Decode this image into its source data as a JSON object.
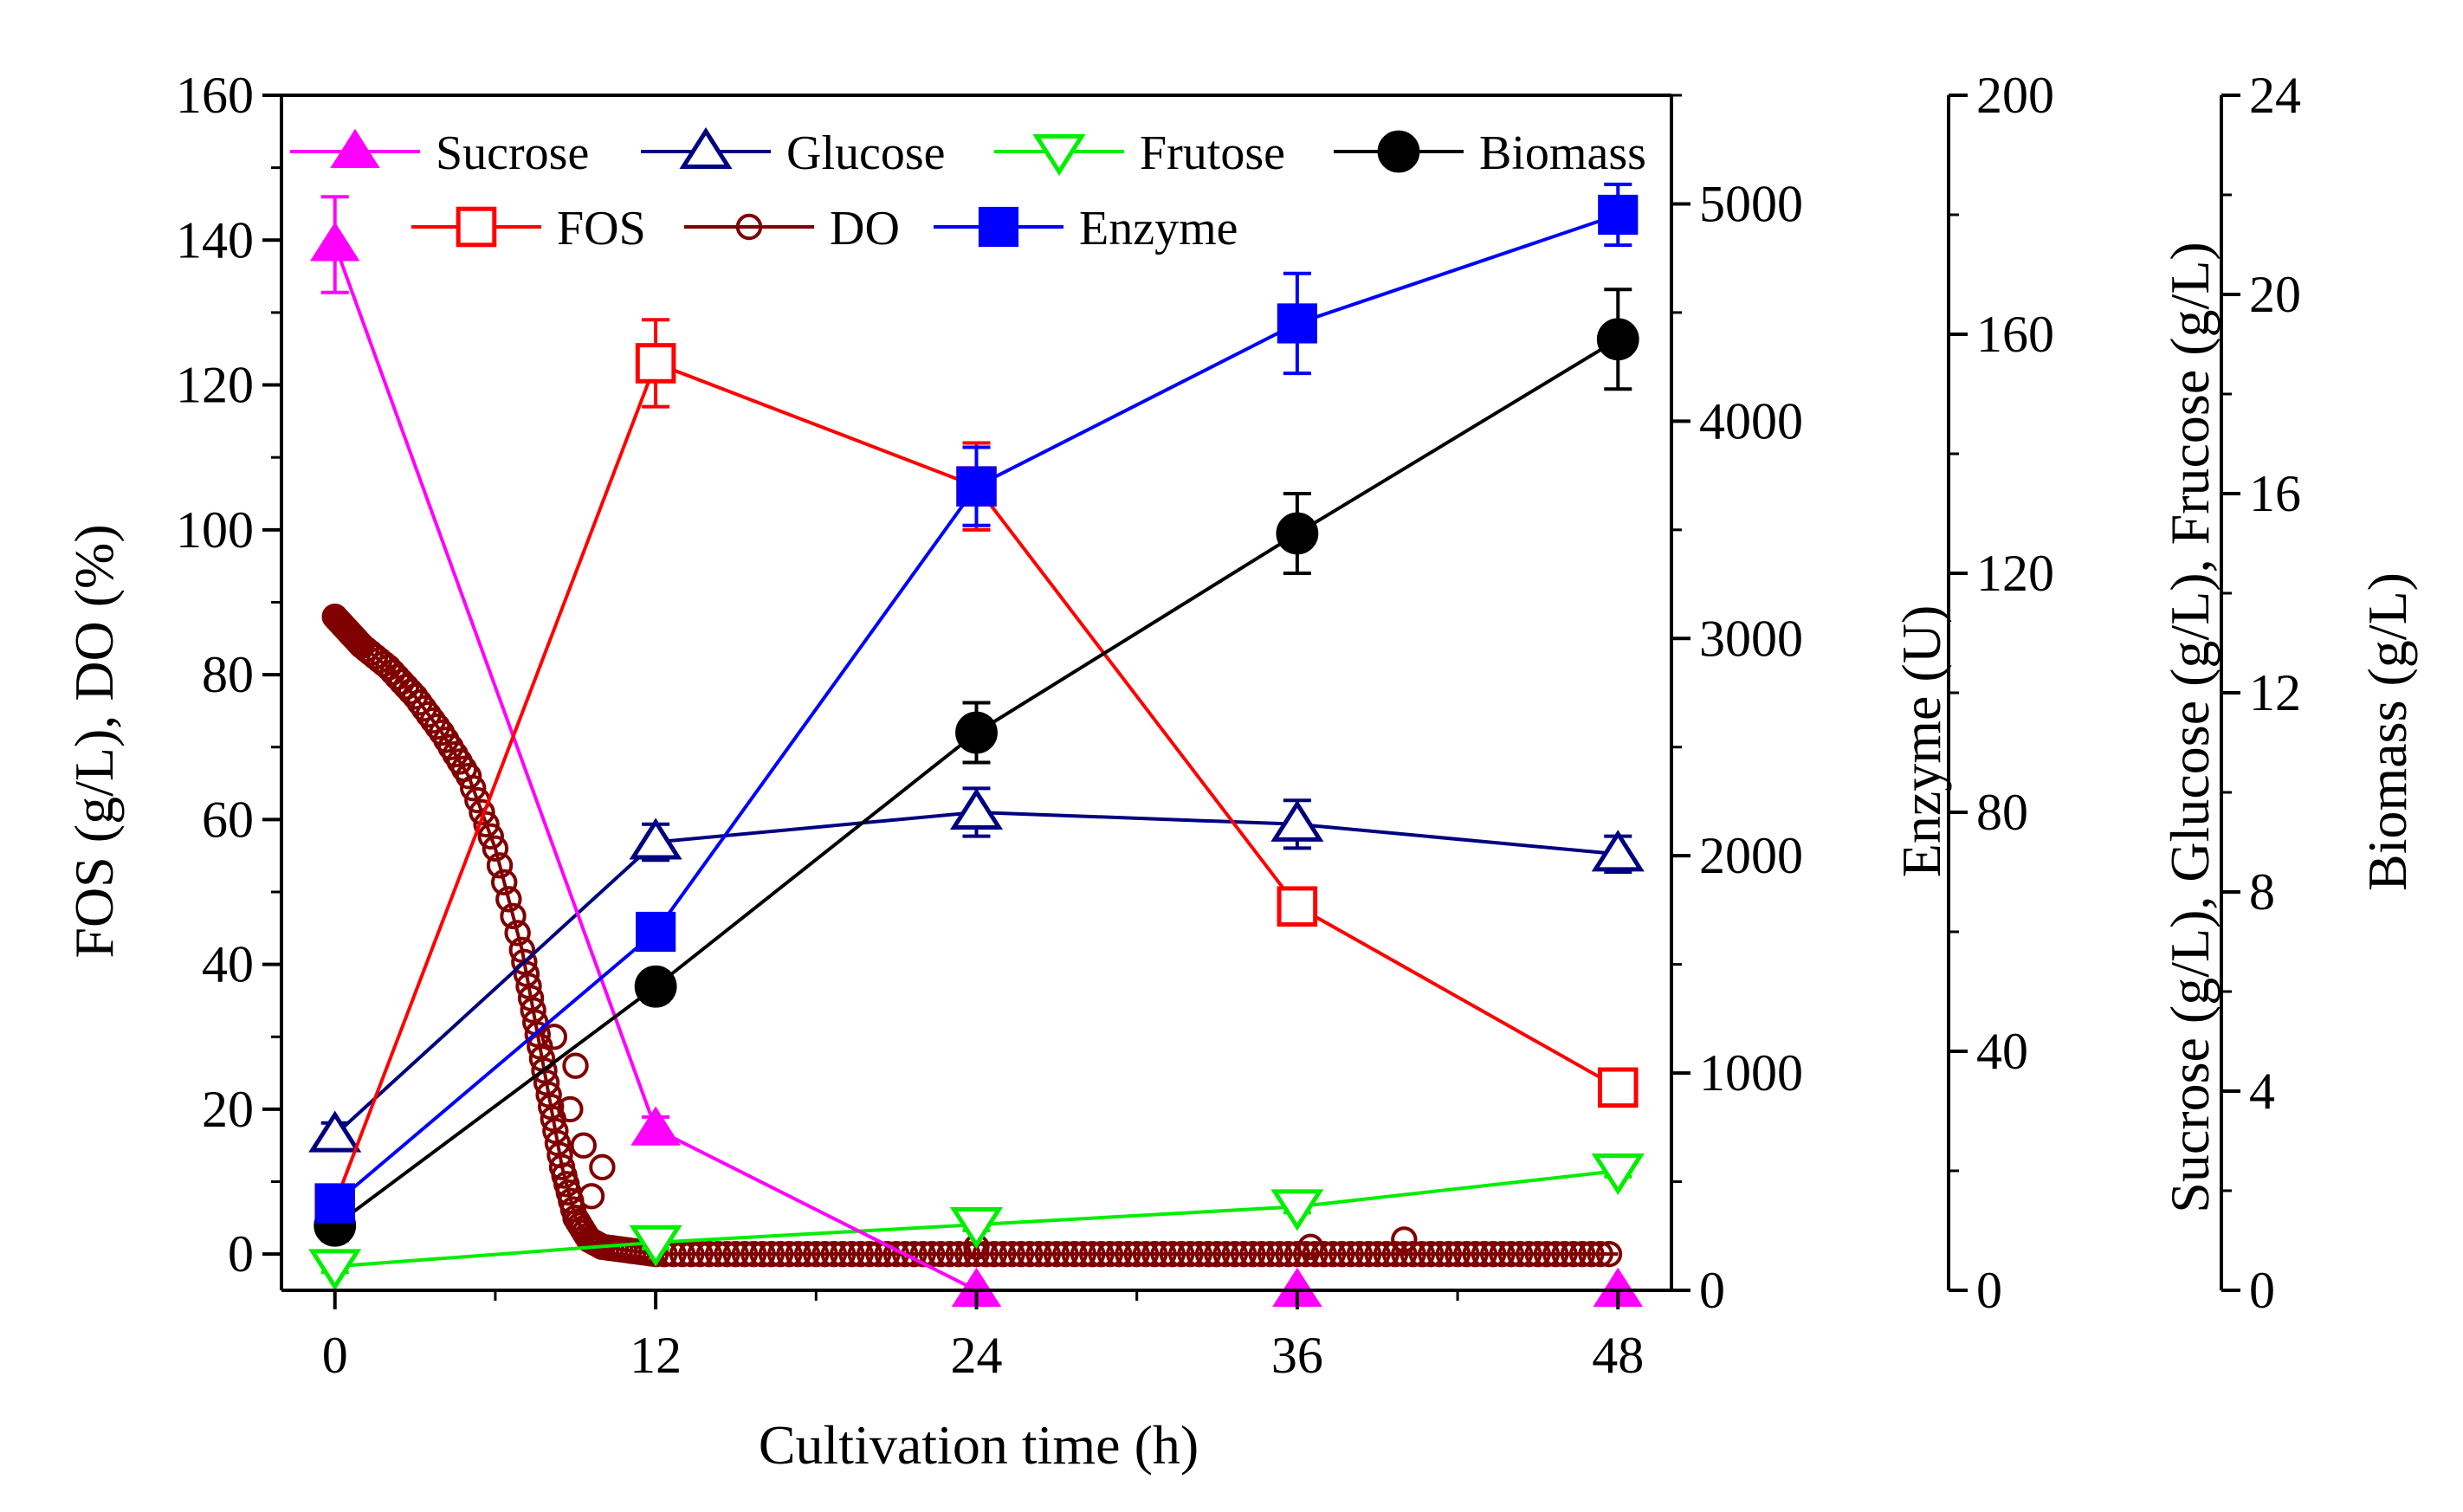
{
  "chart_data": {
    "type": "line",
    "xlabel": "Cultivation time (h)",
    "x": [
      0,
      12,
      24,
      36,
      48
    ],
    "xlim": [
      -2,
      50
    ],
    "xticks": [
      0,
      12,
      24,
      36,
      48
    ],
    "xtick_labels": [
      "0",
      "12",
      "24",
      "36",
      "48"
    ],
    "axes": [
      {
        "id": "left",
        "label": "FOS (g/L), DO (%)",
        "range": [
          -5,
          160
        ],
        "ticks": [
          0,
          20,
          40,
          60,
          80,
          100,
          120,
          140,
          160
        ],
        "tick_labels": [
          "0",
          "20",
          "40",
          "60",
          "80",
          "100",
          "120",
          "140",
          "160"
        ]
      },
      {
        "id": "enzyme",
        "label": "Enzyme (U)",
        "range": [
          0,
          5500
        ],
        "ticks": [
          0,
          1000,
          2000,
          3000,
          4000,
          5000
        ],
        "tick_labels": [
          "0",
          "1000",
          "2000",
          "3000",
          "4000",
          "5000"
        ]
      },
      {
        "id": "sugars",
        "label": "Sucrose (g/L), Glucose (g/L), Frucose (g/L)",
        "range": [
          0,
          200
        ],
        "ticks": [
          0,
          40,
          80,
          120,
          160,
          200
        ],
        "tick_labels": [
          "0",
          "40",
          "80",
          "120",
          "160",
          "200"
        ]
      },
      {
        "id": "biomass",
        "label": "Biomass (g/L)",
        "range": [
          0,
          24
        ],
        "ticks": [
          0,
          4,
          8,
          12,
          16,
          20,
          24
        ],
        "tick_labels": [
          "0",
          "4",
          "8",
          "12",
          "16",
          "20",
          "24"
        ]
      }
    ],
    "series": [
      {
        "name": "Sucrose",
        "axis": "sugars",
        "color": "#ff00ff",
        "marker": "triangle-up-filled",
        "values": [
          175,
          27,
          0,
          0,
          0
        ],
        "errors": [
          8,
          2,
          0,
          0,
          0
        ]
      },
      {
        "name": "Glucose",
        "axis": "sugars",
        "color": "#000080",
        "marker": "triangle-up-open",
        "values": [
          26,
          75,
          80,
          78,
          73
        ],
        "errors": [
          2,
          3,
          4,
          4,
          3
        ]
      },
      {
        "name": "Frutose",
        "axis": "sugars",
        "color": "#00ee00",
        "marker": "triangle-down-open",
        "values": [
          4,
          8,
          11,
          14,
          20
        ],
        "errors": [
          1,
          1,
          1,
          1,
          1
        ]
      },
      {
        "name": "Biomass",
        "axis": "biomass",
        "color": "#000000",
        "marker": "circle-filled",
        "values": [
          1.3,
          6.1,
          11.2,
          15.2,
          19.1
        ],
        "errors": [
          0.3,
          0.3,
          0.6,
          0.8,
          1.0
        ]
      },
      {
        "name": "FOS",
        "axis": "left",
        "color": "#ff0000",
        "marker": "square-open",
        "values": [
          7,
          123,
          106,
          48,
          23
        ],
        "errors": [
          1,
          6,
          6,
          1,
          1
        ]
      },
      {
        "name": "DO",
        "axis": "left",
        "color": "#800000",
        "marker": "circle-open",
        "dense_profile": [
          [
            0,
            88
          ],
          [
            0.5,
            86
          ],
          [
            1,
            84
          ],
          [
            2,
            81
          ],
          [
            3,
            77
          ],
          [
            4,
            72
          ],
          [
            5,
            66
          ],
          [
            6,
            56
          ],
          [
            7,
            42
          ],
          [
            7.5,
            32
          ],
          [
            8,
            22
          ],
          [
            8.5,
            12
          ],
          [
            9,
            5
          ],
          [
            9.5,
            2
          ],
          [
            10,
            1
          ],
          [
            11,
            0.5
          ],
          [
            12,
            0
          ],
          [
            24,
            0
          ],
          [
            36,
            0
          ],
          [
            48,
            0
          ]
        ],
        "scatter_extra": [
          [
            8.2,
            30
          ],
          [
            9,
            26
          ],
          [
            8.8,
            20
          ],
          [
            9.3,
            15
          ],
          [
            10,
            12
          ],
          [
            9.6,
            8
          ],
          [
            24,
            1
          ],
          [
            40,
            2
          ],
          [
            36.5,
            1
          ]
        ]
      },
      {
        "name": "Enzyme",
        "axis": "enzyme",
        "color": "#0000ff",
        "marker": "square-filled",
        "values": [
          400,
          1650,
          3700,
          4450,
          4950
        ],
        "errors": [
          30,
          60,
          180,
          230,
          140
        ]
      }
    ],
    "legend_position": "top-left, inside plot, two rows"
  }
}
